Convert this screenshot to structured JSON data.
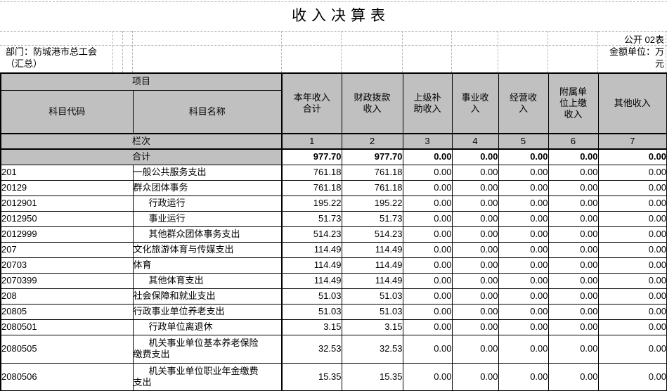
{
  "title": "收入决算表",
  "meta": {
    "table_number": "公开 02表",
    "department": "部门：防城港市总工会（汇总）",
    "unit": "金额单位：万元"
  },
  "header": {
    "project": "项目",
    "code": "科目代码",
    "name": "科目名称",
    "columns": [
      "本年收入\n合计",
      "财政拨款\n收入",
      "上级补\n助收入",
      "事业收\n入",
      "经营收\n入",
      "附属单\n位上缴\n收入",
      "其他收入"
    ]
  },
  "lanci": {
    "label": "栏次",
    "values": [
      "1",
      "2",
      "3",
      "4",
      "5",
      "6",
      "7"
    ]
  },
  "total": {
    "label": "合计",
    "values": [
      "977.70",
      "977.70",
      "0.00",
      "0.00",
      "0.00",
      "0.00",
      "0.00"
    ]
  },
  "rows": [
    {
      "code": "201",
      "name": "一般公共服务支出",
      "indent": false,
      "values": [
        "761.18",
        "761.18",
        "0.00",
        "0.00",
        "0.00",
        "0.00",
        "0.00"
      ]
    },
    {
      "code": "20129",
      "name": "群众团体事务",
      "indent": false,
      "values": [
        "761.18",
        "761.18",
        "0.00",
        "0.00",
        "0.00",
        "0.00",
        "0.00"
      ]
    },
    {
      "code": "2012901",
      "name": "行政运行",
      "indent": true,
      "values": [
        "195.22",
        "195.22",
        "0.00",
        "0.00",
        "0.00",
        "0.00",
        "0.00"
      ]
    },
    {
      "code": "2012950",
      "name": "事业运行",
      "indent": true,
      "values": [
        "51.73",
        "51.73",
        "0.00",
        "0.00",
        "0.00",
        "0.00",
        "0.00"
      ]
    },
    {
      "code": "2012999",
      "name": "其他群众团体事务支出",
      "indent": true,
      "values": [
        "514.23",
        "514.23",
        "0.00",
        "0.00",
        "0.00",
        "0.00",
        "0.00"
      ]
    },
    {
      "code": "207",
      "name": "文化旅游体育与传媒支出",
      "indent": false,
      "values": [
        "114.49",
        "114.49",
        "0.00",
        "0.00",
        "0.00",
        "0.00",
        "0.00"
      ]
    },
    {
      "code": "20703",
      "name": "体育",
      "indent": false,
      "values": [
        "114.49",
        "114.49",
        "0.00",
        "0.00",
        "0.00",
        "0.00",
        "0.00"
      ]
    },
    {
      "code": "2070399",
      "name": "其他体育支出",
      "indent": true,
      "values": [
        "114.49",
        "114.49",
        "0.00",
        "0.00",
        "0.00",
        "0.00",
        "0.00"
      ]
    },
    {
      "code": "208",
      "name": "社会保障和就业支出",
      "indent": false,
      "values": [
        "51.03",
        "51.03",
        "0.00",
        "0.00",
        "0.00",
        "0.00",
        "0.00"
      ]
    },
    {
      "code": "20805",
      "name": "行政事业单位养老支出",
      "indent": false,
      "values": [
        "51.03",
        "51.03",
        "0.00",
        "0.00",
        "0.00",
        "0.00",
        "0.00"
      ]
    },
    {
      "code": "2080501",
      "name": "行政单位离退休",
      "indent": true,
      "values": [
        "3.15",
        "3.15",
        "0.00",
        "0.00",
        "0.00",
        "0.00",
        "0.00"
      ]
    },
    {
      "code": "2080505",
      "name": "机关事业单位基本养老保险\n缴费支出",
      "indent": true,
      "values": [
        "32.53",
        "32.53",
        "0.00",
        "0.00",
        "0.00",
        "0.00",
        "0.00"
      ]
    },
    {
      "code": "2080506",
      "name": "机关事业单位职业年金缴费\n支出",
      "indent": true,
      "values": [
        "15.35",
        "15.35",
        "0.00",
        "0.00",
        "0.00",
        "0.00",
        "0.00"
      ]
    }
  ],
  "colors": {
    "header_bg": "#c0c0c0",
    "border": "#000000",
    "gridline": "#b3b3b3"
  }
}
